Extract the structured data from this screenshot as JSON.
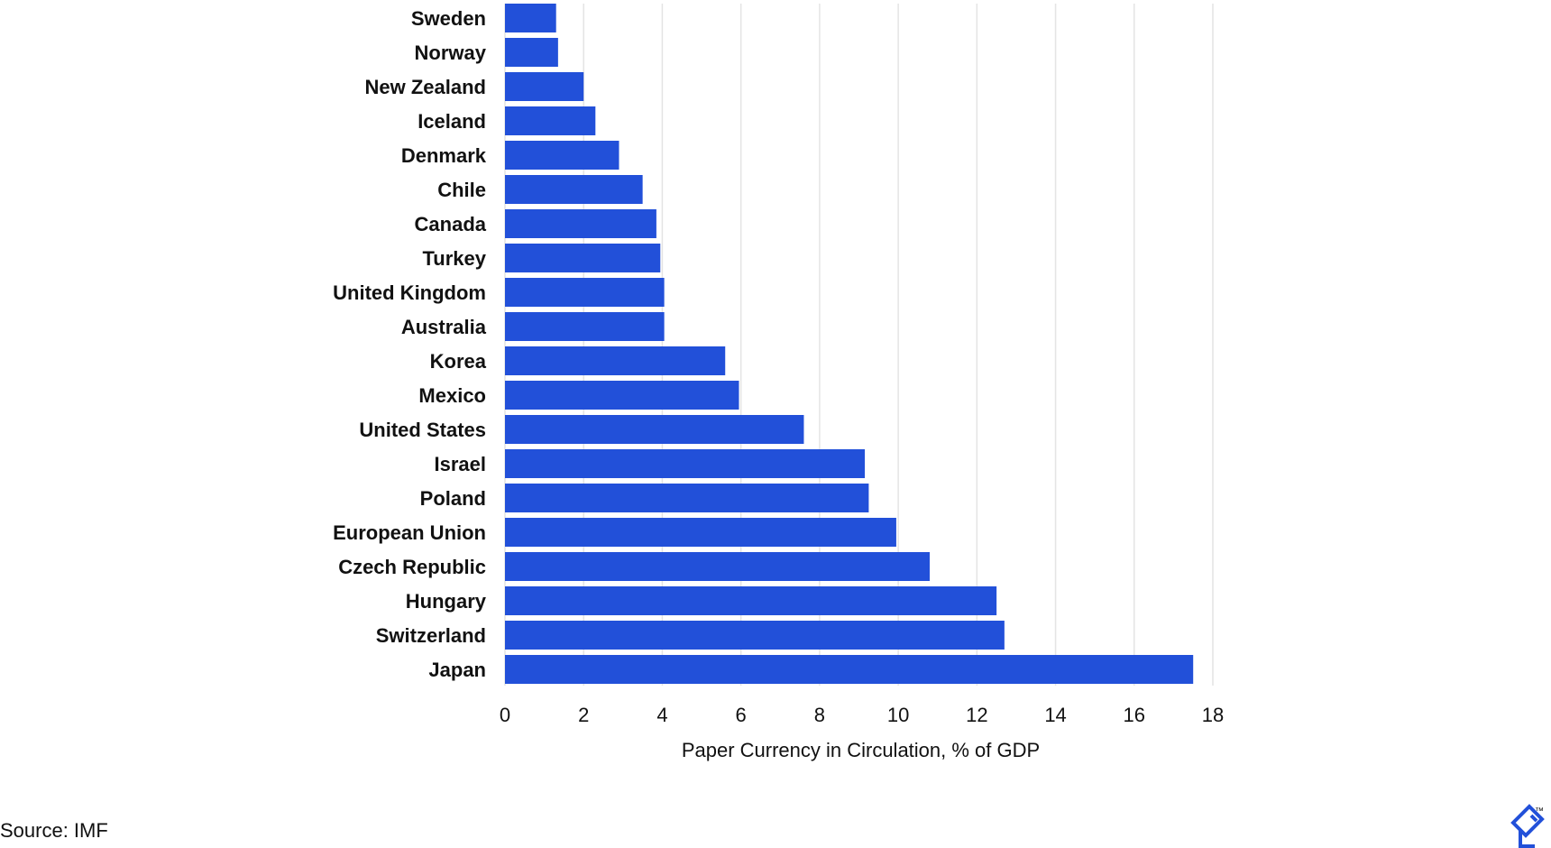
{
  "chart_data": {
    "type": "bar",
    "orientation": "horizontal",
    "categories": [
      "Sweden",
      "Norway",
      "New Zealand",
      "Iceland",
      "Denmark",
      "Chile",
      "Canada",
      "Turkey",
      "United Kingdom",
      "Australia",
      "Korea",
      "Mexico",
      "United States",
      "Israel",
      "Poland",
      "European Union",
      "Czech Republic",
      "Hungary",
      "Switzerland",
      "Japan"
    ],
    "values": [
      1.3,
      1.35,
      2.0,
      2.3,
      2.9,
      3.5,
      3.85,
      3.95,
      4.05,
      4.05,
      5.6,
      5.95,
      7.6,
      9.15,
      9.25,
      9.95,
      10.8,
      12.5,
      12.7,
      17.5
    ],
    "xlabel": "Paper Currency in Circulation, % of GDP",
    "ylabel": "",
    "xlim": [
      0,
      18
    ],
    "ticks": [
      "0",
      "2",
      "4",
      "6",
      "8",
      "10",
      "12",
      "14",
      "16",
      "18"
    ],
    "grid": true,
    "bar_color": "#2250d9"
  },
  "source": "Source: IMF",
  "logo": {
    "icon": "toptal-logo-icon",
    "mark": "™",
    "color": "#2250d9"
  }
}
